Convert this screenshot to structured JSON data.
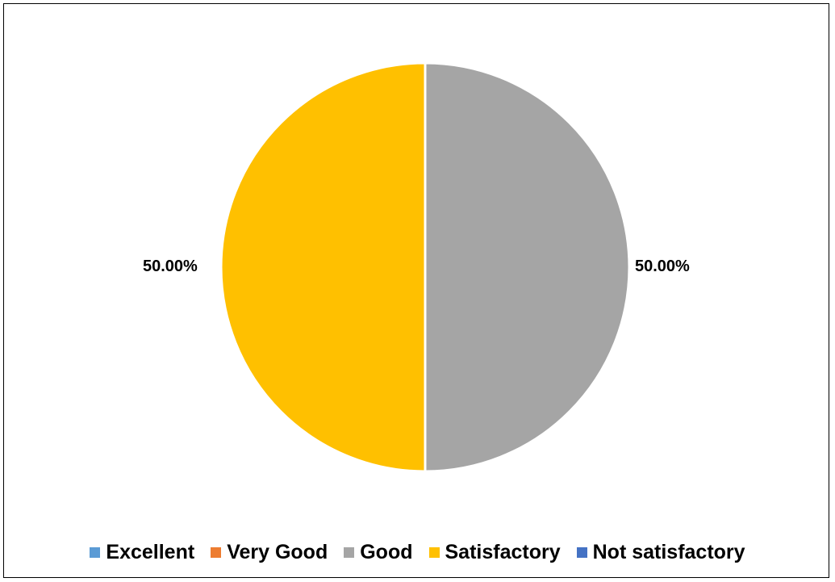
{
  "chart_data": {
    "type": "pie",
    "title": "",
    "categories": [
      "Excellent",
      "Very Good",
      "Good",
      "Satisfactory",
      "Not satisfactory"
    ],
    "values": [
      0,
      0,
      50,
      50,
      0
    ],
    "data_labels": [
      "",
      "",
      "50.00%",
      "50.00%",
      ""
    ],
    "colors": [
      "#5B9BD5",
      "#ED7D31",
      "#A5A5A5",
      "#FFC000",
      "#4472C4"
    ],
    "legend_position": "bottom",
    "start_angle": "top",
    "direction": "clockwise"
  }
}
